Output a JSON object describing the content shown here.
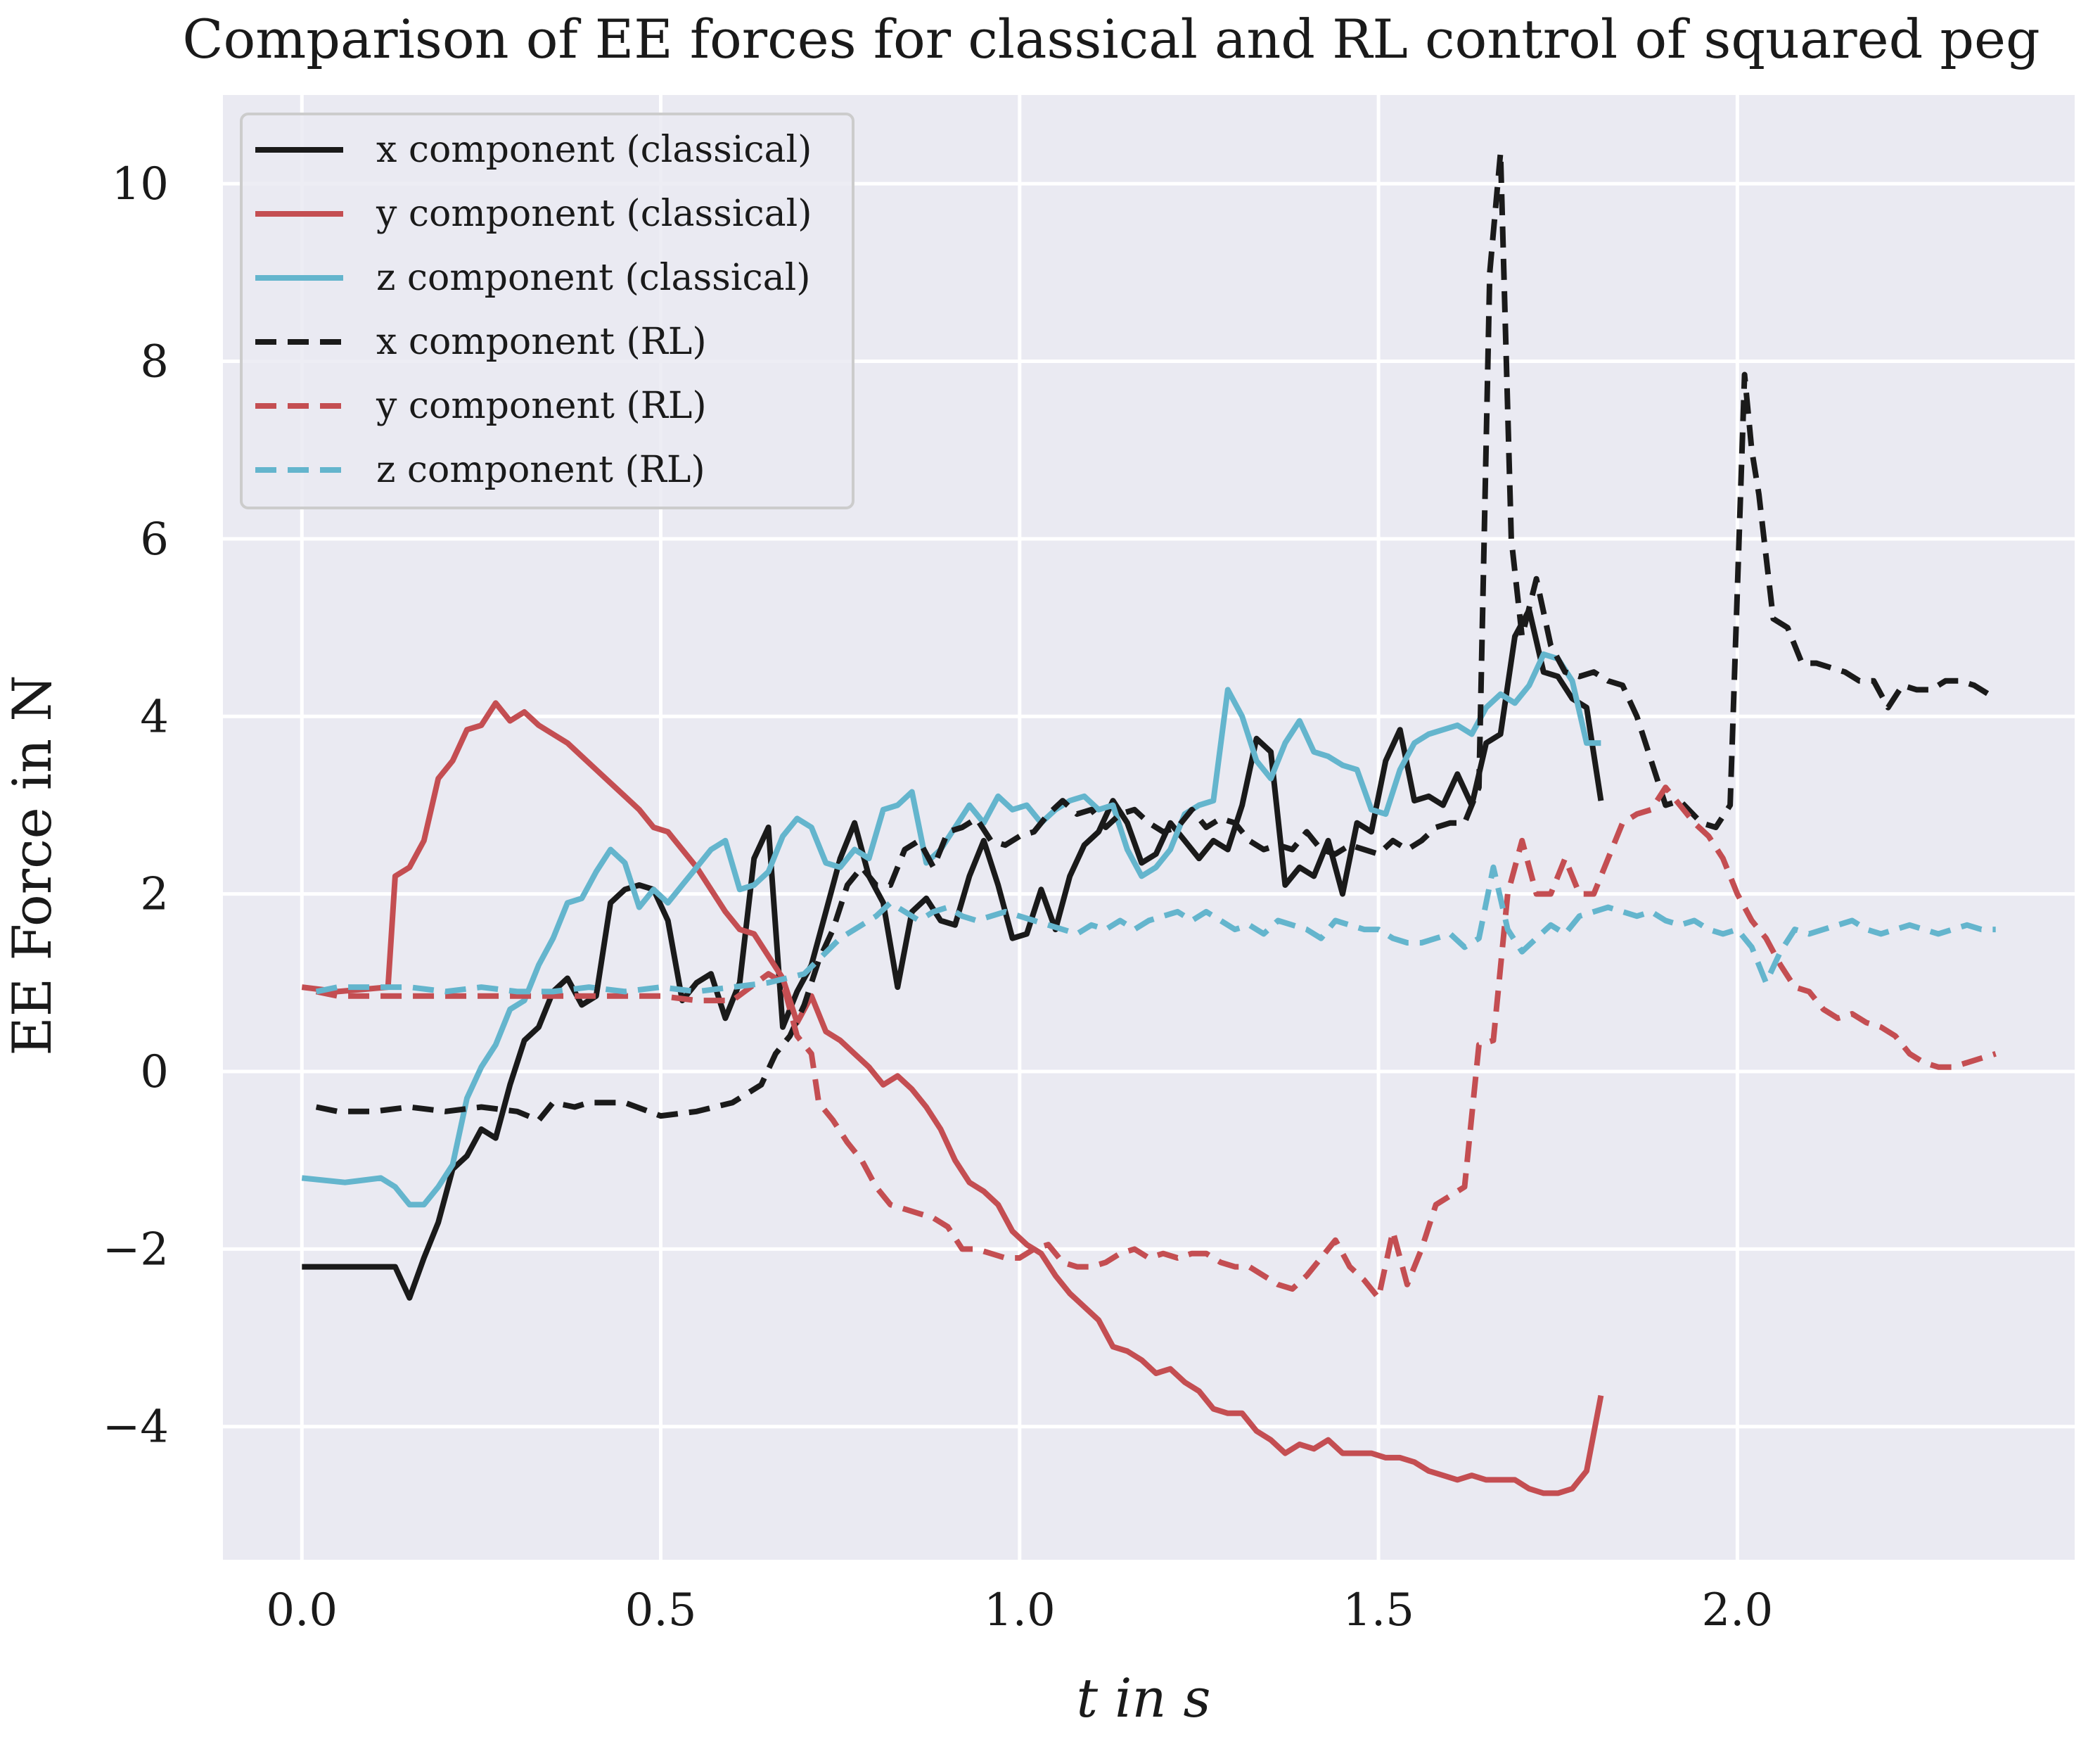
{
  "chart_data": {
    "type": "line",
    "title": "Comparison of EE forces for classical and RL control of squared peg",
    "xlabel": "t in s",
    "ylabel": "EE Force in N",
    "xlim": [
      -0.11,
      2.47
    ],
    "ylim": [
      -5.5,
      11.0
    ],
    "xticks": [
      0.0,
      0.5,
      1.0,
      1.5,
      2.0
    ],
    "xtick_labels": [
      "0.0",
      "0.5",
      "1.0",
      "1.5",
      "2.0"
    ],
    "yticks": [
      -4,
      -2,
      0,
      2,
      4,
      6,
      8,
      10
    ],
    "ytick_labels": [
      "−4",
      "−2",
      "0",
      "2",
      "4",
      "6",
      "8",
      "10"
    ],
    "grid": true,
    "legend_position": "top-left",
    "colors": {
      "x": "#1a1a1a",
      "y": "#c44e52",
      "z": "#64b5cd",
      "background": "#eaeaf2",
      "grid": "#ffffff"
    },
    "series": [
      {
        "name": "x component (classical)",
        "color": "#1a1a1a",
        "dash": "solid",
        "x": [
          0.0,
          0.05,
          0.1,
          0.13,
          0.15,
          0.17,
          0.19,
          0.21,
          0.23,
          0.25,
          0.27,
          0.29,
          0.31,
          0.33,
          0.35,
          0.37,
          0.39,
          0.41,
          0.43,
          0.45,
          0.47,
          0.49,
          0.51,
          0.53,
          0.55,
          0.57,
          0.59,
          0.61,
          0.63,
          0.65,
          0.67,
          0.69,
          0.71,
          0.73,
          0.75,
          0.77,
          0.79,
          0.81,
          0.83,
          0.85,
          0.87,
          0.89,
          0.91,
          0.93,
          0.95,
          0.97,
          0.99,
          1.01,
          1.03,
          1.05,
          1.07,
          1.09,
          1.11,
          1.13,
          1.15,
          1.17,
          1.19,
          1.21,
          1.23,
          1.25,
          1.27,
          1.29,
          1.31,
          1.33,
          1.35,
          1.37,
          1.39,
          1.41,
          1.43,
          1.45,
          1.47,
          1.49,
          1.51,
          1.53,
          1.55,
          1.57,
          1.59,
          1.61,
          1.63,
          1.65,
          1.67,
          1.69,
          1.71,
          1.73,
          1.75,
          1.77,
          1.79,
          1.81
        ],
        "y": [
          -2.2,
          -2.2,
          -2.2,
          -2.2,
          -2.55,
          -2.1,
          -1.7,
          -1.1,
          -0.95,
          -0.65,
          -0.75,
          -0.15,
          0.35,
          0.5,
          0.9,
          1.05,
          0.75,
          0.85,
          1.9,
          2.05,
          2.1,
          2.05,
          1.7,
          0.8,
          1.0,
          1.1,
          0.6,
          1.0,
          2.4,
          2.75,
          0.5,
          0.9,
          1.2,
          1.8,
          2.4,
          2.8,
          2.2,
          1.9,
          0.95,
          1.8,
          1.95,
          1.7,
          1.65,
          2.2,
          2.6,
          2.1,
          1.5,
          1.55,
          2.05,
          1.6,
          2.2,
          2.55,
          2.7,
          3.05,
          2.8,
          2.35,
          2.45,
          2.8,
          2.6,
          2.4,
          2.6,
          2.5,
          3.0,
          3.75,
          3.6,
          2.1,
          2.3,
          2.2,
          2.6,
          2.0,
          2.8,
          2.7,
          3.5,
          3.85,
          3.05,
          3.1,
          3.0,
          3.35,
          3.0,
          3.7,
          3.8,
          4.9,
          5.2,
          4.5,
          4.45,
          4.2,
          4.1,
          3.05
        ]
      },
      {
        "name": "y component (classical)",
        "color": "#c44e52",
        "dash": "solid",
        "x": [
          0.0,
          0.05,
          0.12,
          0.13,
          0.15,
          0.17,
          0.19,
          0.21,
          0.23,
          0.25,
          0.27,
          0.29,
          0.31,
          0.33,
          0.35,
          0.37,
          0.39,
          0.41,
          0.43,
          0.45,
          0.47,
          0.49,
          0.51,
          0.53,
          0.55,
          0.57,
          0.59,
          0.61,
          0.63,
          0.65,
          0.67,
          0.69,
          0.71,
          0.73,
          0.75,
          0.77,
          0.79,
          0.81,
          0.83,
          0.85,
          0.87,
          0.89,
          0.91,
          0.93,
          0.95,
          0.97,
          0.99,
          1.01,
          1.03,
          1.05,
          1.07,
          1.09,
          1.11,
          1.13,
          1.15,
          1.17,
          1.19,
          1.21,
          1.23,
          1.25,
          1.27,
          1.29,
          1.31,
          1.33,
          1.35,
          1.37,
          1.39,
          1.41,
          1.43,
          1.45,
          1.47,
          1.49,
          1.51,
          1.53,
          1.55,
          1.57,
          1.59,
          1.61,
          1.63,
          1.65,
          1.67,
          1.69,
          1.71,
          1.73,
          1.75,
          1.77,
          1.79,
          1.81
        ],
        "y": [
          0.95,
          0.9,
          0.95,
          2.2,
          2.3,
          2.6,
          3.3,
          3.5,
          3.85,
          3.9,
          4.15,
          3.95,
          4.05,
          3.9,
          3.8,
          3.7,
          3.55,
          3.4,
          3.25,
          3.1,
          2.95,
          2.75,
          2.7,
          2.5,
          2.3,
          2.05,
          1.8,
          1.6,
          1.55,
          1.3,
          1.05,
          0.55,
          0.85,
          0.45,
          0.35,
          0.2,
          0.05,
          -0.15,
          -0.05,
          -0.2,
          -0.4,
          -0.65,
          -1.0,
          -1.25,
          -1.35,
          -1.5,
          -1.8,
          -1.95,
          -2.05,
          -2.3,
          -2.5,
          -2.65,
          -2.8,
          -3.1,
          -3.15,
          -3.25,
          -3.4,
          -3.35,
          -3.5,
          -3.6,
          -3.8,
          -3.85,
          -3.85,
          -4.05,
          -4.15,
          -4.3,
          -4.2,
          -4.25,
          -4.15,
          -4.3,
          -4.3,
          -4.3,
          -4.35,
          -4.35,
          -4.4,
          -4.5,
          -4.55,
          -4.6,
          -4.55,
          -4.6,
          -4.6,
          -4.6,
          -4.7,
          -4.75,
          -4.75,
          -4.7,
          -4.5,
          -3.65
        ]
      },
      {
        "name": "z component (classical)",
        "color": "#64b5cd",
        "dash": "solid",
        "x": [
          0.0,
          0.06,
          0.11,
          0.13,
          0.15,
          0.17,
          0.19,
          0.21,
          0.23,
          0.25,
          0.27,
          0.29,
          0.31,
          0.33,
          0.35,
          0.37,
          0.39,
          0.41,
          0.43,
          0.45,
          0.47,
          0.49,
          0.51,
          0.53,
          0.55,
          0.57,
          0.59,
          0.61,
          0.63,
          0.65,
          0.67,
          0.69,
          0.71,
          0.73,
          0.75,
          0.77,
          0.79,
          0.81,
          0.83,
          0.85,
          0.87,
          0.89,
          0.91,
          0.93,
          0.95,
          0.97,
          0.99,
          1.01,
          1.03,
          1.05,
          1.07,
          1.09,
          1.11,
          1.13,
          1.15,
          1.17,
          1.19,
          1.21,
          1.23,
          1.25,
          1.27,
          1.29,
          1.31,
          1.33,
          1.35,
          1.37,
          1.39,
          1.41,
          1.43,
          1.45,
          1.47,
          1.49,
          1.51,
          1.53,
          1.55,
          1.57,
          1.59,
          1.61,
          1.63,
          1.65,
          1.67,
          1.69,
          1.71,
          1.73,
          1.75,
          1.77,
          1.79,
          1.81
        ],
        "y": [
          -1.2,
          -1.25,
          -1.2,
          -1.3,
          -1.5,
          -1.5,
          -1.3,
          -1.05,
          -0.3,
          0.05,
          0.3,
          0.7,
          0.8,
          1.2,
          1.5,
          1.9,
          1.95,
          2.25,
          2.5,
          2.35,
          1.85,
          2.05,
          1.9,
          2.1,
          2.3,
          2.5,
          2.6,
          2.05,
          2.1,
          2.25,
          2.65,
          2.85,
          2.75,
          2.35,
          2.3,
          2.5,
          2.4,
          2.95,
          3.0,
          3.15,
          2.35,
          2.5,
          2.75,
          3.0,
          2.8,
          3.1,
          2.95,
          3.0,
          2.8,
          2.95,
          3.05,
          3.1,
          2.95,
          3.0,
          2.5,
          2.2,
          2.3,
          2.5,
          2.9,
          3.0,
          3.05,
          4.3,
          4.0,
          3.5,
          3.3,
          3.7,
          3.95,
          3.6,
          3.55,
          3.45,
          3.4,
          2.95,
          2.9,
          3.4,
          3.7,
          3.8,
          3.85,
          3.9,
          3.8,
          4.1,
          4.25,
          4.15,
          4.35,
          4.7,
          4.65,
          4.4,
          3.7,
          3.7
        ]
      },
      {
        "name": "x component (RL)",
        "color": "#1a1a1a",
        "dash": "dashed",
        "x": [
          0.02,
          0.05,
          0.1,
          0.15,
          0.2,
          0.25,
          0.3,
          0.33,
          0.35,
          0.38,
          0.4,
          0.45,
          0.5,
          0.55,
          0.6,
          0.64,
          0.66,
          0.68,
          0.7,
          0.72,
          0.74,
          0.76,
          0.78,
          0.8,
          0.82,
          0.84,
          0.86,
          0.88,
          0.9,
          0.92,
          0.94,
          0.96,
          0.98,
          1.0,
          1.02,
          1.04,
          1.06,
          1.08,
          1.1,
          1.12,
          1.14,
          1.16,
          1.18,
          1.2,
          1.22,
          1.24,
          1.26,
          1.28,
          1.3,
          1.32,
          1.34,
          1.36,
          1.38,
          1.4,
          1.42,
          1.44,
          1.46,
          1.48,
          1.5,
          1.52,
          1.54,
          1.56,
          1.58,
          1.6,
          1.62,
          1.63,
          1.64,
          1.655,
          1.67,
          1.685,
          1.7,
          1.72,
          1.74,
          1.76,
          1.78,
          1.8,
          1.82,
          1.84,
          1.86,
          1.88,
          1.9,
          1.92,
          1.95,
          1.97,
          1.99,
          2.01,
          2.02,
          2.03,
          2.05,
          2.07,
          2.09,
          2.11,
          2.13,
          2.15,
          2.17,
          2.19,
          2.21,
          2.23,
          2.25,
          2.27,
          2.29,
          2.31,
          2.33,
          2.36
        ],
        "y": [
          -0.4,
          -0.45,
          -0.45,
          -0.4,
          -0.45,
          -0.4,
          -0.45,
          -0.55,
          -0.35,
          -0.4,
          -0.35,
          -0.35,
          -0.5,
          -0.45,
          -0.35,
          -0.15,
          0.2,
          0.4,
          0.75,
          1.25,
          1.6,
          2.1,
          2.3,
          2.1,
          2.1,
          2.5,
          2.6,
          2.3,
          2.7,
          2.75,
          2.85,
          2.6,
          2.55,
          2.65,
          2.7,
          2.9,
          3.05,
          2.9,
          2.95,
          2.75,
          2.9,
          2.95,
          2.8,
          2.7,
          2.75,
          2.95,
          2.75,
          2.85,
          2.8,
          2.6,
          2.5,
          2.55,
          2.5,
          2.7,
          2.5,
          2.45,
          2.55,
          2.5,
          2.45,
          2.6,
          2.5,
          2.6,
          2.75,
          2.8,
          2.8,
          3.0,
          3.2,
          9.0,
          10.35,
          6.0,
          4.9,
          5.55,
          4.8,
          4.5,
          4.45,
          4.5,
          4.4,
          4.35,
          4.0,
          3.5,
          3.0,
          3.05,
          2.8,
          2.75,
          3.0,
          7.85,
          7.0,
          6.5,
          5.1,
          5.0,
          4.6,
          4.6,
          4.55,
          4.5,
          4.4,
          4.4,
          4.1,
          4.35,
          4.3,
          4.3,
          4.4,
          4.4,
          4.35,
          4.2
        ]
      },
      {
        "name": "y component (RL)",
        "color": "#c44e52",
        "dash": "dashed",
        "x": [
          0.02,
          0.05,
          0.1,
          0.15,
          0.2,
          0.25,
          0.3,
          0.35,
          0.4,
          0.45,
          0.5,
          0.55,
          0.6,
          0.65,
          0.67,
          0.69,
          0.71,
          0.72,
          0.74,
          0.76,
          0.78,
          0.8,
          0.82,
          0.84,
          0.86,
          0.88,
          0.9,
          0.92,
          0.94,
          0.96,
          0.98,
          1.0,
          1.02,
          1.04,
          1.06,
          1.08,
          1.1,
          1.12,
          1.14,
          1.16,
          1.18,
          1.2,
          1.22,
          1.24,
          1.26,
          1.28,
          1.3,
          1.32,
          1.34,
          1.36,
          1.38,
          1.4,
          1.42,
          1.44,
          1.46,
          1.48,
          1.5,
          1.52,
          1.54,
          1.56,
          1.58,
          1.6,
          1.62,
          1.64,
          1.66,
          1.68,
          1.7,
          1.72,
          1.74,
          1.76,
          1.78,
          1.8,
          1.82,
          1.84,
          1.86,
          1.88,
          1.9,
          1.92,
          1.94,
          1.96,
          1.98,
          2.0,
          2.02,
          2.04,
          2.06,
          2.08,
          2.1,
          2.12,
          2.14,
          2.16,
          2.18,
          2.2,
          2.22,
          2.24,
          2.26,
          2.28,
          2.3,
          2.32,
          2.34,
          2.36
        ],
        "y": [
          0.9,
          0.85,
          0.85,
          0.85,
          0.85,
          0.85,
          0.85,
          0.85,
          0.85,
          0.85,
          0.85,
          0.8,
          0.8,
          1.1,
          1.0,
          0.4,
          0.2,
          -0.35,
          -0.55,
          -0.8,
          -1.0,
          -1.3,
          -1.5,
          -1.55,
          -1.6,
          -1.65,
          -1.75,
          -2.0,
          -2.0,
          -2.05,
          -2.1,
          -2.1,
          -2.0,
          -1.95,
          -2.15,
          -2.2,
          -2.2,
          -2.15,
          -2.05,
          -2.0,
          -2.1,
          -2.05,
          -2.1,
          -2.05,
          -2.05,
          -2.15,
          -2.2,
          -2.2,
          -2.3,
          -2.4,
          -2.45,
          -2.3,
          -2.1,
          -1.9,
          -2.2,
          -2.35,
          -2.55,
          -1.8,
          -2.4,
          -2.0,
          -1.5,
          -1.4,
          -1.3,
          0.3,
          0.35,
          2.0,
          2.6,
          2.0,
          2.0,
          2.4,
          2.0,
          2.0,
          2.4,
          2.8,
          2.9,
          2.95,
          3.2,
          3.0,
          2.8,
          2.65,
          2.4,
          2.0,
          1.7,
          1.5,
          1.2,
          0.95,
          0.9,
          0.7,
          0.6,
          0.65,
          0.55,
          0.5,
          0.4,
          0.2,
          0.1,
          0.05,
          0.05,
          0.1,
          0.15,
          0.2
        ]
      },
      {
        "name": "z component (RL)",
        "color": "#64b5cd",
        "dash": "dashed",
        "x": [
          0.02,
          0.05,
          0.1,
          0.15,
          0.2,
          0.25,
          0.3,
          0.35,
          0.4,
          0.45,
          0.5,
          0.55,
          0.6,
          0.65,
          0.7,
          0.75,
          0.8,
          0.82,
          0.84,
          0.86,
          0.88,
          0.9,
          0.92,
          0.94,
          0.96,
          0.98,
          1.0,
          1.02,
          1.04,
          1.06,
          1.08,
          1.1,
          1.12,
          1.14,
          1.16,
          1.18,
          1.2,
          1.22,
          1.24,
          1.26,
          1.28,
          1.3,
          1.32,
          1.34,
          1.36,
          1.38,
          1.4,
          1.42,
          1.44,
          1.46,
          1.48,
          1.5,
          1.52,
          1.54,
          1.56,
          1.58,
          1.6,
          1.62,
          1.64,
          1.66,
          1.68,
          1.7,
          1.72,
          1.74,
          1.76,
          1.78,
          1.8,
          1.82,
          1.84,
          1.86,
          1.88,
          1.9,
          1.92,
          1.94,
          1.96,
          1.98,
          2.0,
          2.02,
          2.04,
          2.06,
          2.08,
          2.1,
          2.12,
          2.14,
          2.16,
          2.18,
          2.2,
          2.22,
          2.24,
          2.26,
          2.28,
          2.3,
          2.32,
          2.34,
          2.36
        ],
        "y": [
          0.9,
          0.95,
          0.95,
          0.95,
          0.9,
          0.95,
          0.9,
          0.9,
          0.95,
          0.9,
          0.95,
          0.9,
          0.95,
          1.0,
          1.1,
          1.5,
          1.75,
          1.9,
          1.8,
          1.7,
          1.8,
          1.85,
          1.75,
          1.7,
          1.75,
          1.8,
          1.75,
          1.7,
          1.65,
          1.6,
          1.55,
          1.65,
          1.6,
          1.7,
          1.6,
          1.7,
          1.75,
          1.8,
          1.7,
          1.8,
          1.7,
          1.6,
          1.65,
          1.55,
          1.7,
          1.65,
          1.6,
          1.5,
          1.7,
          1.65,
          1.6,
          1.6,
          1.5,
          1.45,
          1.45,
          1.5,
          1.55,
          1.4,
          1.5,
          2.3,
          1.6,
          1.35,
          1.5,
          1.65,
          1.55,
          1.75,
          1.8,
          1.85,
          1.8,
          1.75,
          1.8,
          1.7,
          1.65,
          1.7,
          1.6,
          1.55,
          1.6,
          1.4,
          1.0,
          1.35,
          1.6,
          1.55,
          1.6,
          1.65,
          1.7,
          1.6,
          1.55,
          1.6,
          1.65,
          1.6,
          1.55,
          1.6,
          1.65,
          1.6,
          1.6
        ]
      }
    ]
  }
}
